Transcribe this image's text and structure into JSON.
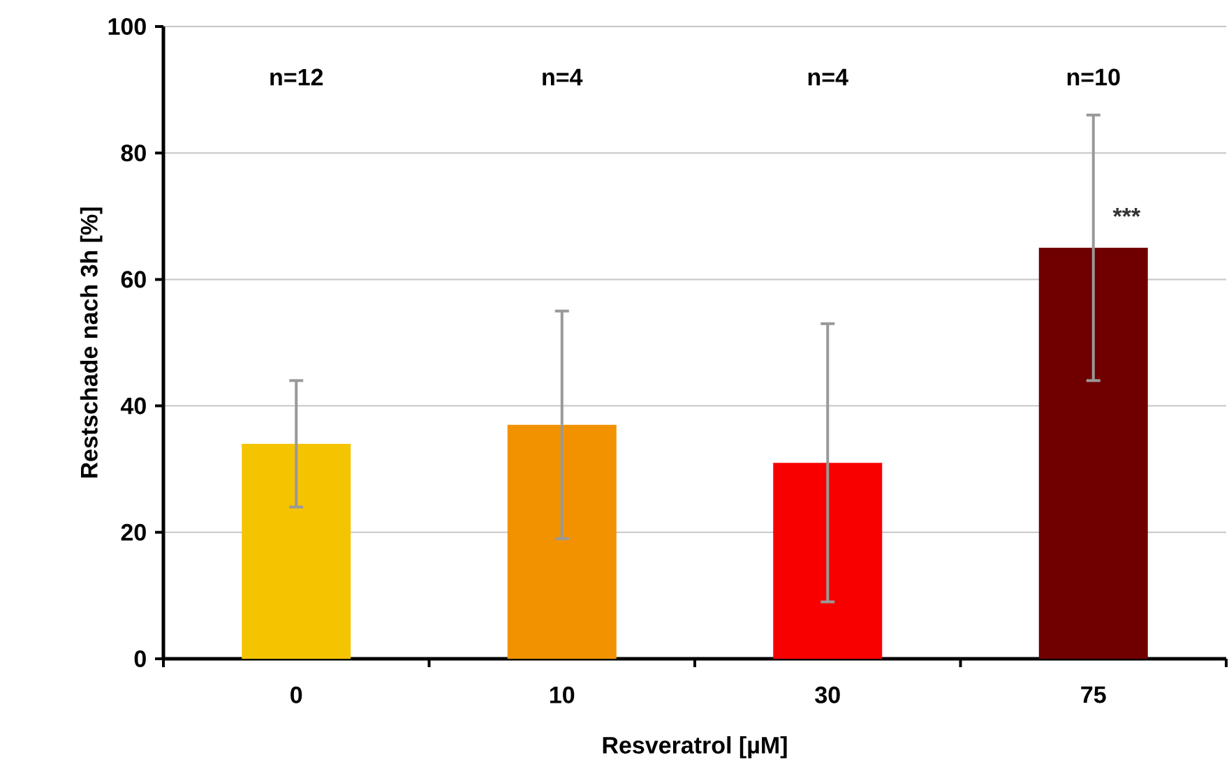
{
  "chart_data": {
    "type": "bar",
    "xlabel": "Resveratrol [µM]",
    "ylabel": "Restschade nach 3h [%]",
    "categories": [
      "0",
      "10",
      "30",
      "75"
    ],
    "values": [
      34,
      37,
      31,
      65
    ],
    "errors": [
      10,
      18,
      22,
      21
    ],
    "colors": [
      "#f5c400",
      "#f39200",
      "#f80000",
      "#700000"
    ],
    "ylim": [
      0,
      100
    ],
    "yticks": [
      0,
      20,
      40,
      60,
      80,
      100
    ],
    "grid": "y",
    "annotations": [
      "n=12",
      "n=4",
      "n=4",
      "n=10",
      {
        "text": "***",
        "x": "75",
        "y": 70
      }
    ]
  }
}
